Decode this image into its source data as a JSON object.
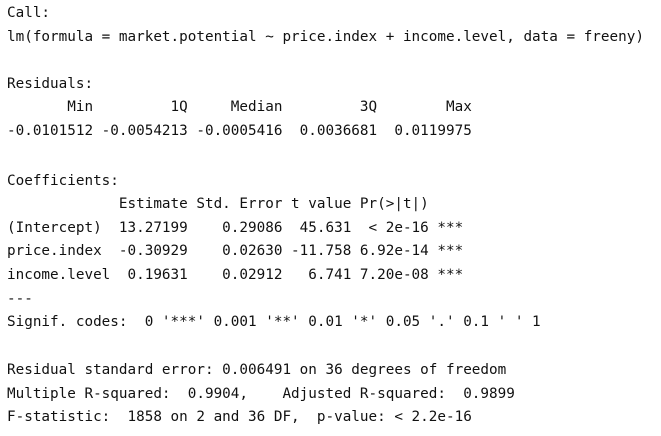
{
  "console": {
    "call": {
      "label": "Call:",
      "formula": "lm(formula = market.potential ~ price.index + income.level, data = freeny)"
    },
    "residuals": {
      "label": "Residuals:",
      "header": "       Min         1Q     Median         3Q        Max",
      "values": "-0.0101512 -0.0054213 -0.0005416  0.0036681  0.0119975"
    },
    "coefficients": {
      "label": "Coefficients:",
      "header": "             Estimate Std. Error t value Pr(>|t|)",
      "rows": [
        "(Intercept)  13.27199    0.29086  45.631  < 2e-16 ***",
        "price.index  -0.30929    0.02630 -11.758 6.92e-14 ***",
        "income.level  0.19631    0.02912   6.741 7.20e-08 ***"
      ],
      "separator": "---",
      "signif": "Signif. codes:  0 '***' 0.001 '**' 0.01 '*' 0.05 '.' 0.1 ' ' 1"
    },
    "summary": [
      "Residual standard error: 0.006491 on 36 degrees of freedom",
      "Multiple R-squared:  0.9904,    Adjusted R-squared:  0.9899",
      "F-statistic:  1858 on 2 and 36 DF,  p-value: < 2.2e-16"
    ]
  }
}
